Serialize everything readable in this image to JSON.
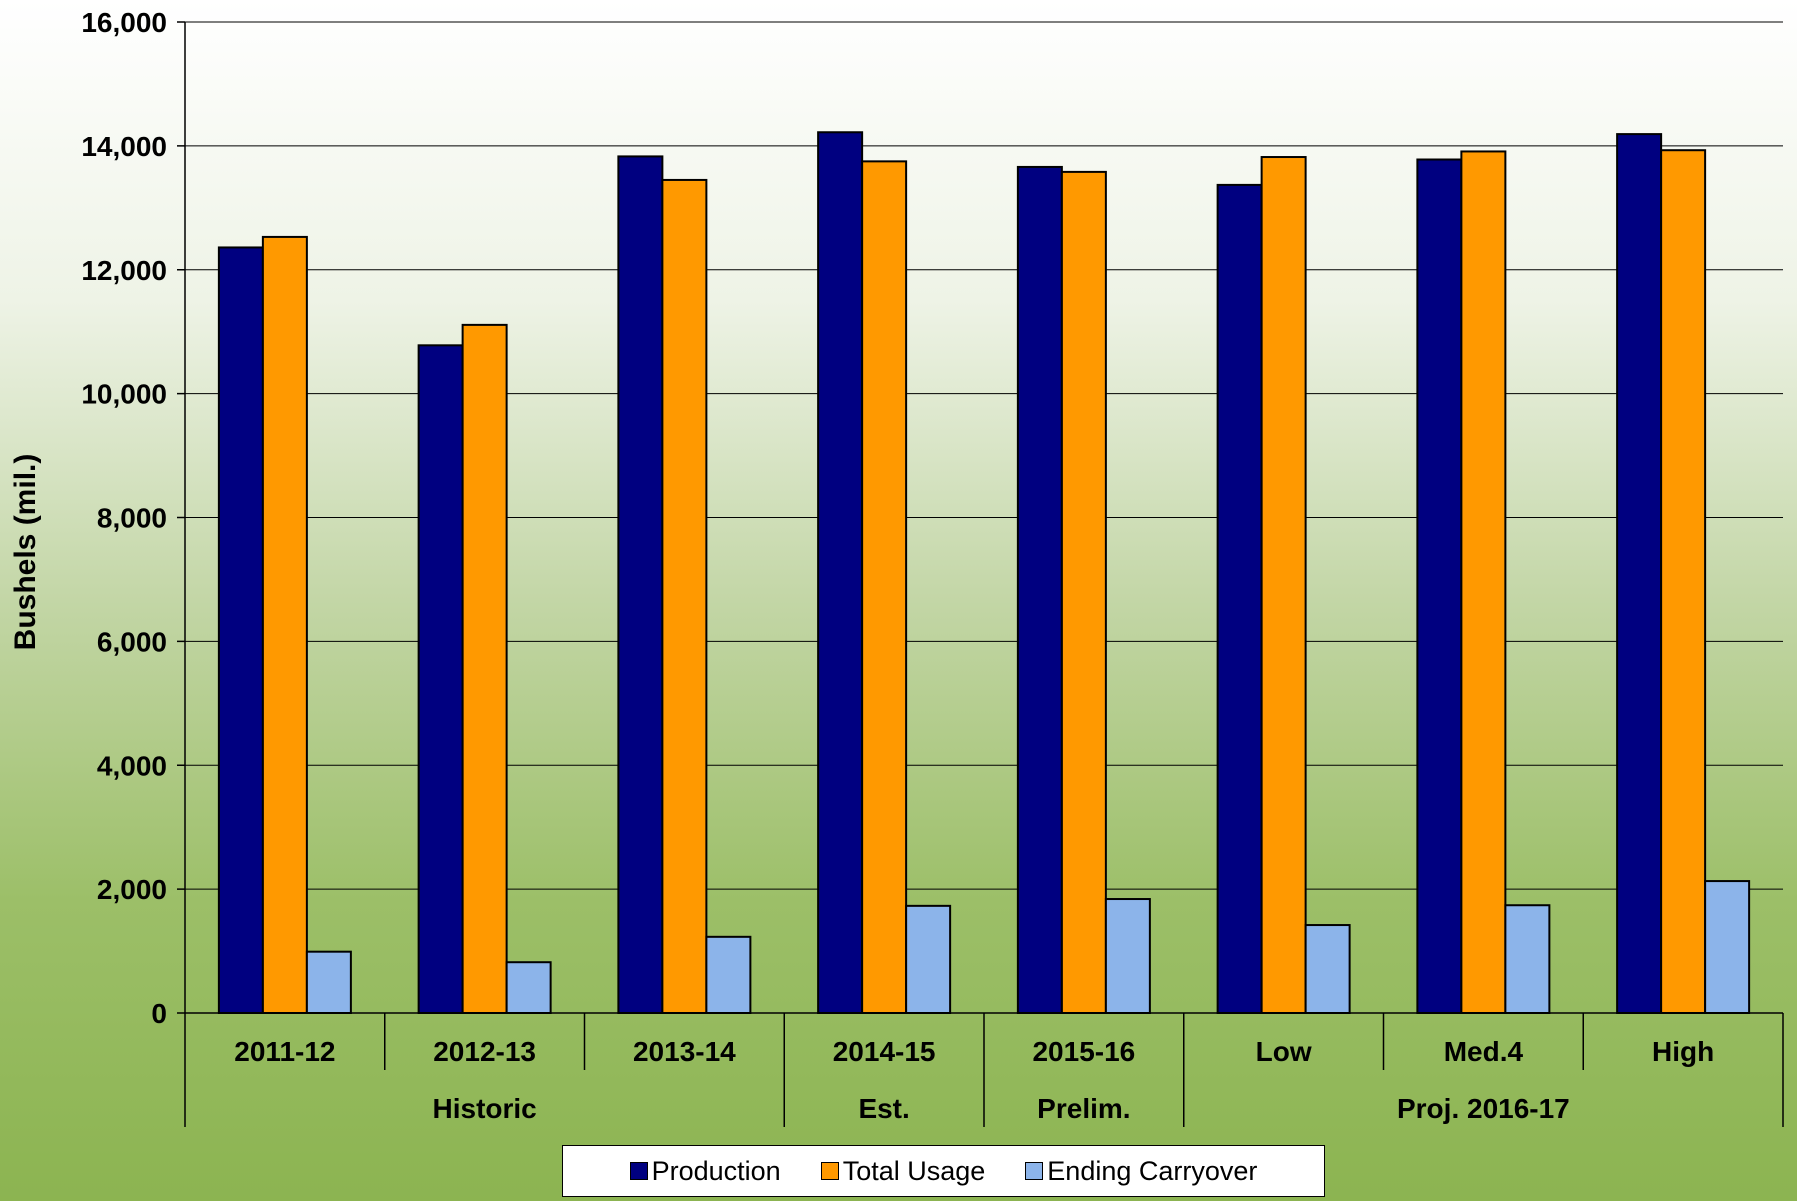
{
  "chart_data": {
    "type": "bar",
    "title": "",
    "xlabel": "",
    "ylabel": "Bushels (mil.)",
    "ylim": [
      0,
      16000
    ],
    "yticks": [
      "0",
      "2,000",
      "4,000",
      "6,000",
      "8,000",
      "10,000",
      "12,000",
      "14,000",
      "16,000"
    ],
    "grid": true,
    "legend_position": "bottom",
    "categories": [
      "2011-12",
      "2012-13",
      "2013-14",
      "2014-15",
      "2015-16",
      "Low",
      "Med.4",
      "High"
    ],
    "groups": [
      {
        "label": "Historic",
        "span": [
          0,
          2
        ]
      },
      {
        "label": "Est.",
        "span": [
          3,
          3
        ]
      },
      {
        "label": "Prelim.",
        "span": [
          4,
          4
        ]
      },
      {
        "label": "Proj. 2016-17",
        "span": [
          5,
          7
        ]
      }
    ],
    "series": [
      {
        "name": "Production",
        "color": "#000080",
        "values": [
          12360,
          10780,
          13830,
          14220,
          13660,
          13370,
          13780,
          14190
        ]
      },
      {
        "name": "Total Usage",
        "color": "#ff9900",
        "values": [
          12530,
          11110,
          13450,
          13750,
          13580,
          13820,
          13910,
          13930
        ]
      },
      {
        "name": "Ending Carryover",
        "color": "#8cb4ea",
        "values": [
          990,
          820,
          1230,
          1730,
          1840,
          1420,
          1740,
          2130
        ]
      }
    ]
  }
}
